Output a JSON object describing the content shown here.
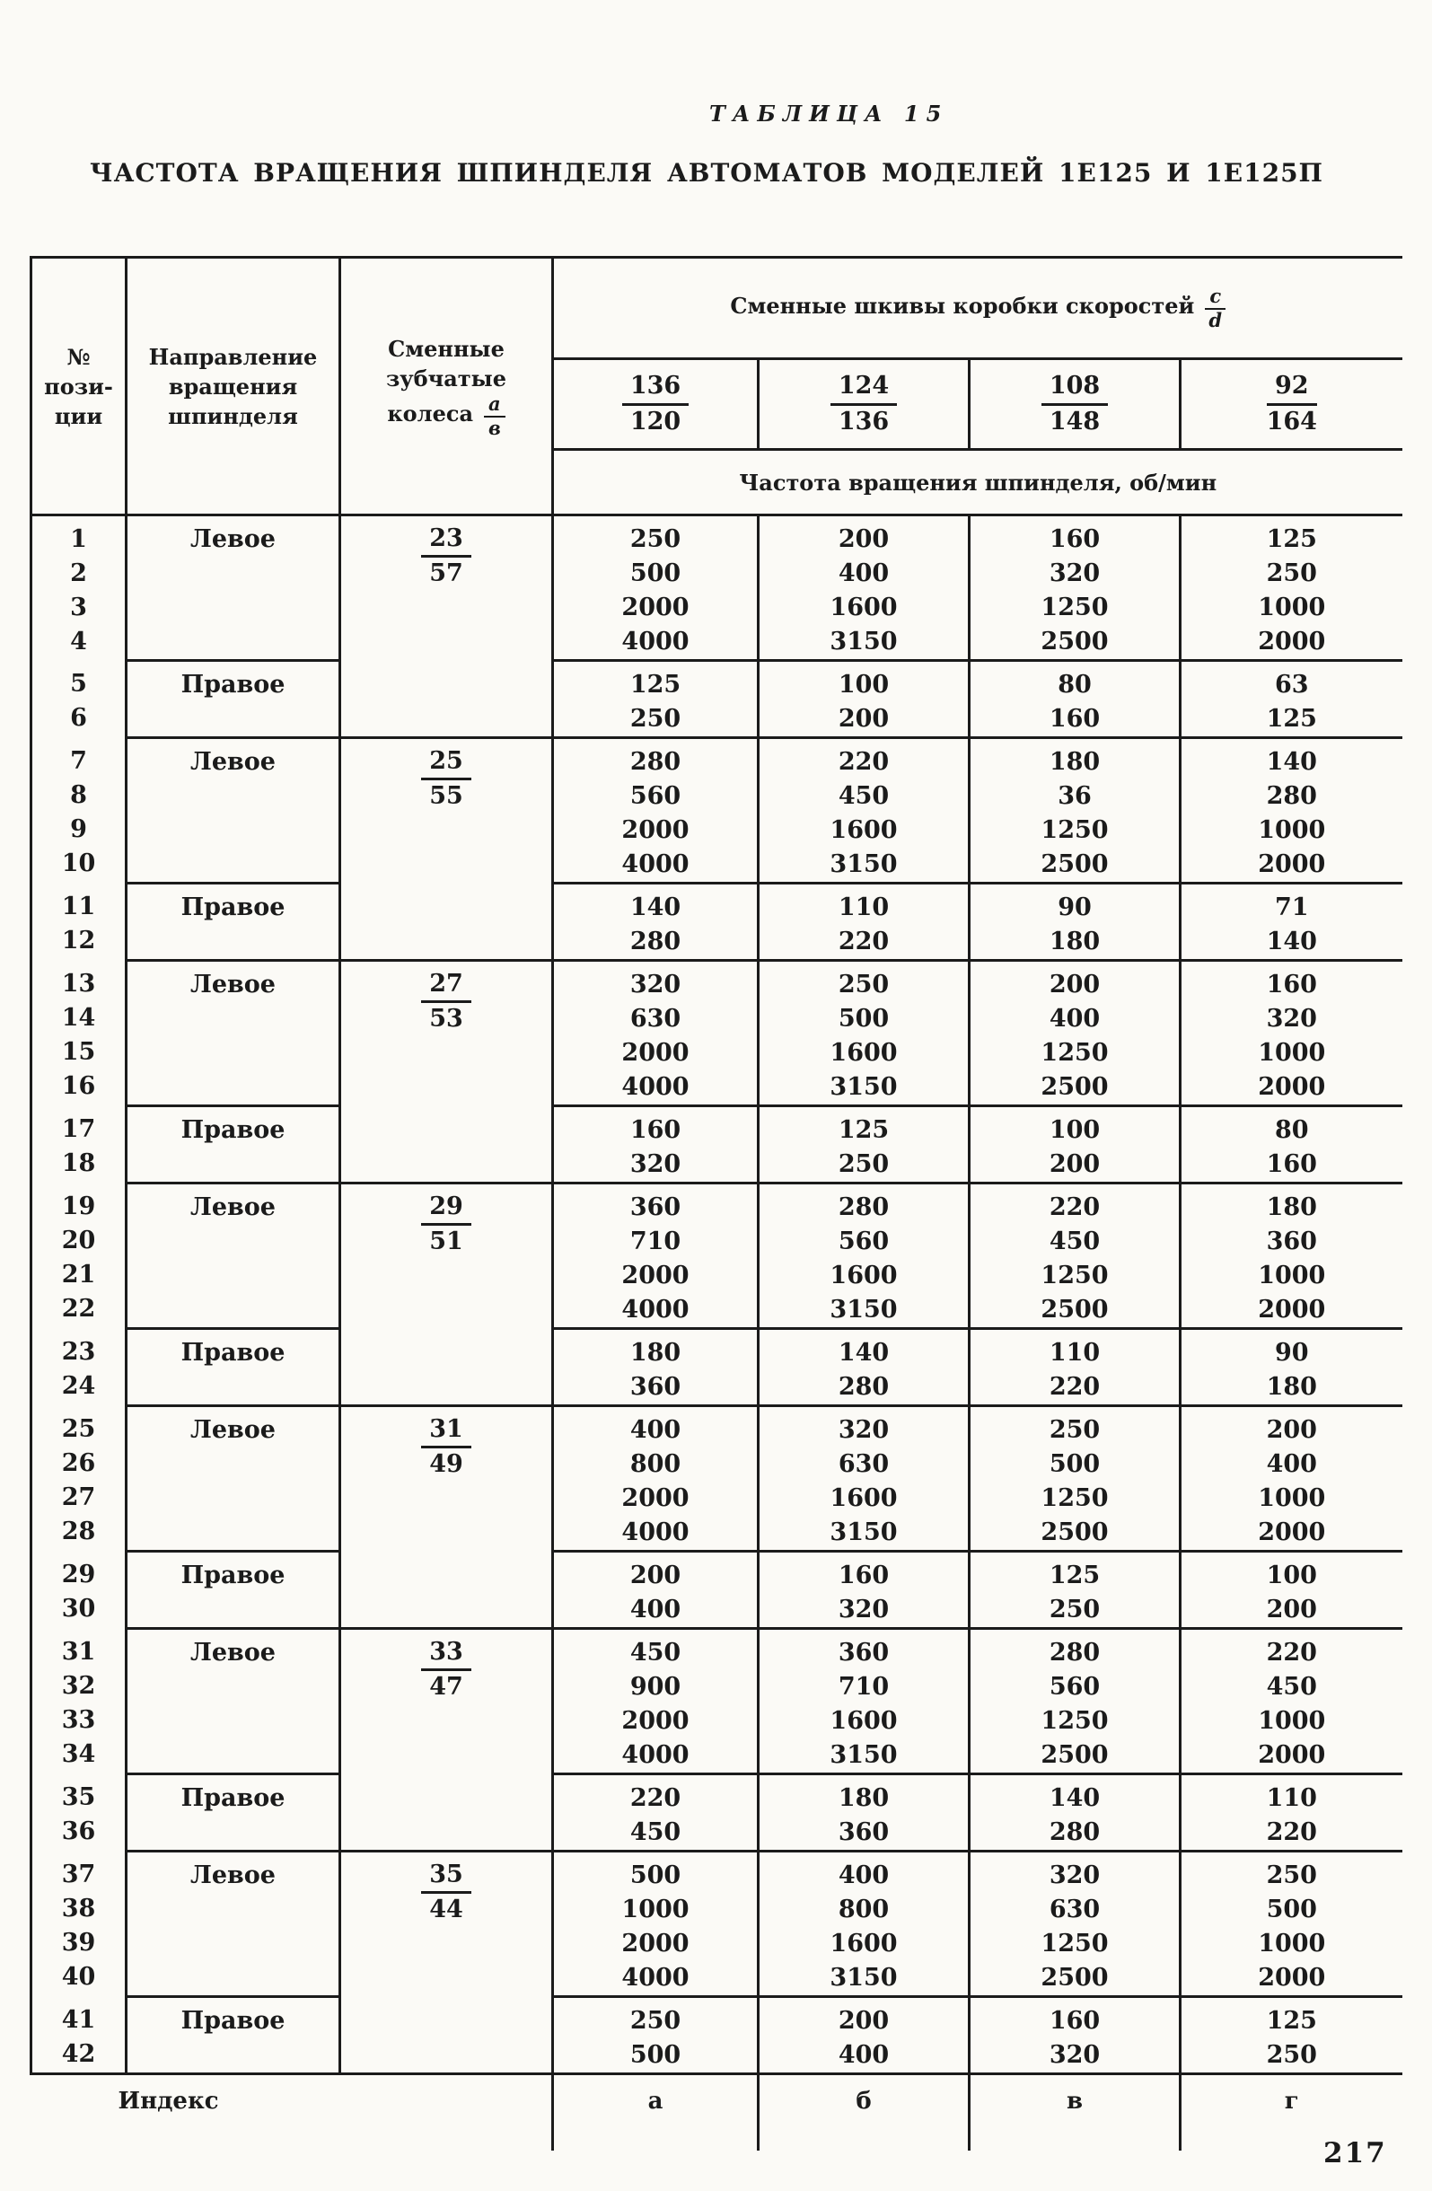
{
  "page": {
    "table_label": "ТАБЛИЦА 15",
    "title": "ЧАСТОТА ВРАЩЕНИЯ ШПИНДЕЛЯ АВТОМАТОВ МОДЕЛЕЙ 1Е125 И 1Е125П",
    "page_number": "217"
  },
  "header": {
    "col_position": [
      "№",
      "пози-",
      "ции"
    ],
    "col_direction": [
      "Направление",
      "вращения",
      "шпинделя"
    ],
    "col_gears": [
      "Сменные",
      "зубчатые"
    ],
    "col_gears_prefix": "колеса",
    "gear_frac": {
      "num": "а",
      "den": "в"
    },
    "pulleys_label": "Сменные шкивы коробки скоростей",
    "pulleys_frac": {
      "num": "c",
      "den": "d"
    },
    "pulley_columns": [
      {
        "num": "136",
        "den": "120"
      },
      {
        "num": "124",
        "den": "136"
      },
      {
        "num": "108",
        "den": "148"
      },
      {
        "num": "92",
        "den": "164"
      }
    ],
    "freq_label": "Частота вращения шпинделя, об/мин"
  },
  "groups": [
    {
      "positions": [
        "1",
        "2",
        "3",
        "4"
      ],
      "direction": "Левое",
      "gear": {
        "num": "23",
        "den": "57"
      },
      "values": [
        [
          "250",
          "500",
          "2000",
          "4000"
        ],
        [
          "200",
          "400",
          "1600",
          "3150"
        ],
        [
          "160",
          "320",
          "1250",
          "2500"
        ],
        [
          "125",
          "250",
          "1000",
          "2000"
        ]
      ]
    },
    {
      "positions": [
        "5",
        "6"
      ],
      "direction": "Правое",
      "gear": null,
      "values": [
        [
          "125",
          "250"
        ],
        [
          "100",
          "200"
        ],
        [
          "80",
          "160"
        ],
        [
          "63",
          "125"
        ]
      ]
    },
    {
      "positions": [
        "7",
        "8",
        "9",
        "10"
      ],
      "direction": "Левое",
      "gear": {
        "num": "25",
        "den": "55"
      },
      "values": [
        [
          "280",
          "560",
          "2000",
          "4000"
        ],
        [
          "220",
          "450",
          "1600",
          "3150"
        ],
        [
          "180",
          "36",
          "1250",
          "2500"
        ],
        [
          "140",
          "280",
          "1000",
          "2000"
        ]
      ]
    },
    {
      "positions": [
        "11",
        "12"
      ],
      "direction": "Правое",
      "gear": null,
      "values": [
        [
          "140",
          "280"
        ],
        [
          "110",
          "220"
        ],
        [
          "90",
          "180"
        ],
        [
          "71",
          "140"
        ]
      ]
    },
    {
      "positions": [
        "13",
        "14",
        "15",
        "16"
      ],
      "direction": "Левое",
      "gear": {
        "num": "27",
        "den": "53"
      },
      "values": [
        [
          "320",
          "630",
          "2000",
          "4000"
        ],
        [
          "250",
          "500",
          "1600",
          "3150"
        ],
        [
          "200",
          "400",
          "1250",
          "2500"
        ],
        [
          "160",
          "320",
          "1000",
          "2000"
        ]
      ]
    },
    {
      "positions": [
        "17",
        "18"
      ],
      "direction": "Правое",
      "gear": null,
      "values": [
        [
          "160",
          "320"
        ],
        [
          "125",
          "250"
        ],
        [
          "100",
          "200"
        ],
        [
          "80",
          "160"
        ]
      ]
    },
    {
      "positions": [
        "19",
        "20",
        "21",
        "22"
      ],
      "direction": "Левое",
      "gear": {
        "num": "29",
        "den": "51"
      },
      "values": [
        [
          "360",
          "710",
          "2000",
          "4000"
        ],
        [
          "280",
          "560",
          "1600",
          "3150"
        ],
        [
          "220",
          "450",
          "1250",
          "2500"
        ],
        [
          "180",
          "360",
          "1000",
          "2000"
        ]
      ]
    },
    {
      "positions": [
        "23",
        "24"
      ],
      "direction": "Правое",
      "gear": null,
      "values": [
        [
          "180",
          "360"
        ],
        [
          "140",
          "280"
        ],
        [
          "110",
          "220"
        ],
        [
          "90",
          "180"
        ]
      ]
    },
    {
      "positions": [
        "25",
        "26",
        "27",
        "28"
      ],
      "direction": "Левое",
      "gear": {
        "num": "31",
        "den": "49"
      },
      "values": [
        [
          "400",
          "800",
          "2000",
          "4000"
        ],
        [
          "320",
          "630",
          "1600",
          "3150"
        ],
        [
          "250",
          "500",
          "1250",
          "2500"
        ],
        [
          "200",
          "400",
          "1000",
          "2000"
        ]
      ]
    },
    {
      "positions": [
        "29",
        "30"
      ],
      "direction": "Правое",
      "gear": null,
      "values": [
        [
          "200",
          "400"
        ],
        [
          "160",
          "320"
        ],
        [
          "125",
          "250"
        ],
        [
          "100",
          "200"
        ]
      ]
    },
    {
      "positions": [
        "31",
        "32",
        "33",
        "34"
      ],
      "direction": "Левое",
      "gear": {
        "num": "33",
        "den": "47"
      },
      "values": [
        [
          "450",
          "900",
          "2000",
          "4000"
        ],
        [
          "360",
          "710",
          "1600",
          "3150"
        ],
        [
          "280",
          "560",
          "1250",
          "2500"
        ],
        [
          "220",
          "450",
          "1000",
          "2000"
        ]
      ]
    },
    {
      "positions": [
        "35",
        "36"
      ],
      "direction": "Правое",
      "gear": null,
      "values": [
        [
          "220",
          "450"
        ],
        [
          "180",
          "360"
        ],
        [
          "140",
          "280"
        ],
        [
          "110",
          "220"
        ]
      ]
    },
    {
      "positions": [
        "37",
        "38",
        "39",
        "40"
      ],
      "direction": "Левое",
      "gear": {
        "num": "35",
        "den": "44"
      },
      "values": [
        [
          "500",
          "1000",
          "2000",
          "4000"
        ],
        [
          "400",
          "800",
          "1600",
          "3150"
        ],
        [
          "320",
          "630",
          "1250",
          "2500"
        ],
        [
          "250",
          "500",
          "1000",
          "2000"
        ]
      ]
    },
    {
      "positions": [
        "41",
        "42"
      ],
      "direction": "Правое",
      "gear": null,
      "values": [
        [
          "250",
          "500"
        ],
        [
          "200",
          "400"
        ],
        [
          "160",
          "320"
        ],
        [
          "125",
          "250"
        ]
      ]
    }
  ],
  "footer": {
    "index_label": "Индекс",
    "indices": [
      "а",
      "б",
      "в",
      "г"
    ]
  }
}
